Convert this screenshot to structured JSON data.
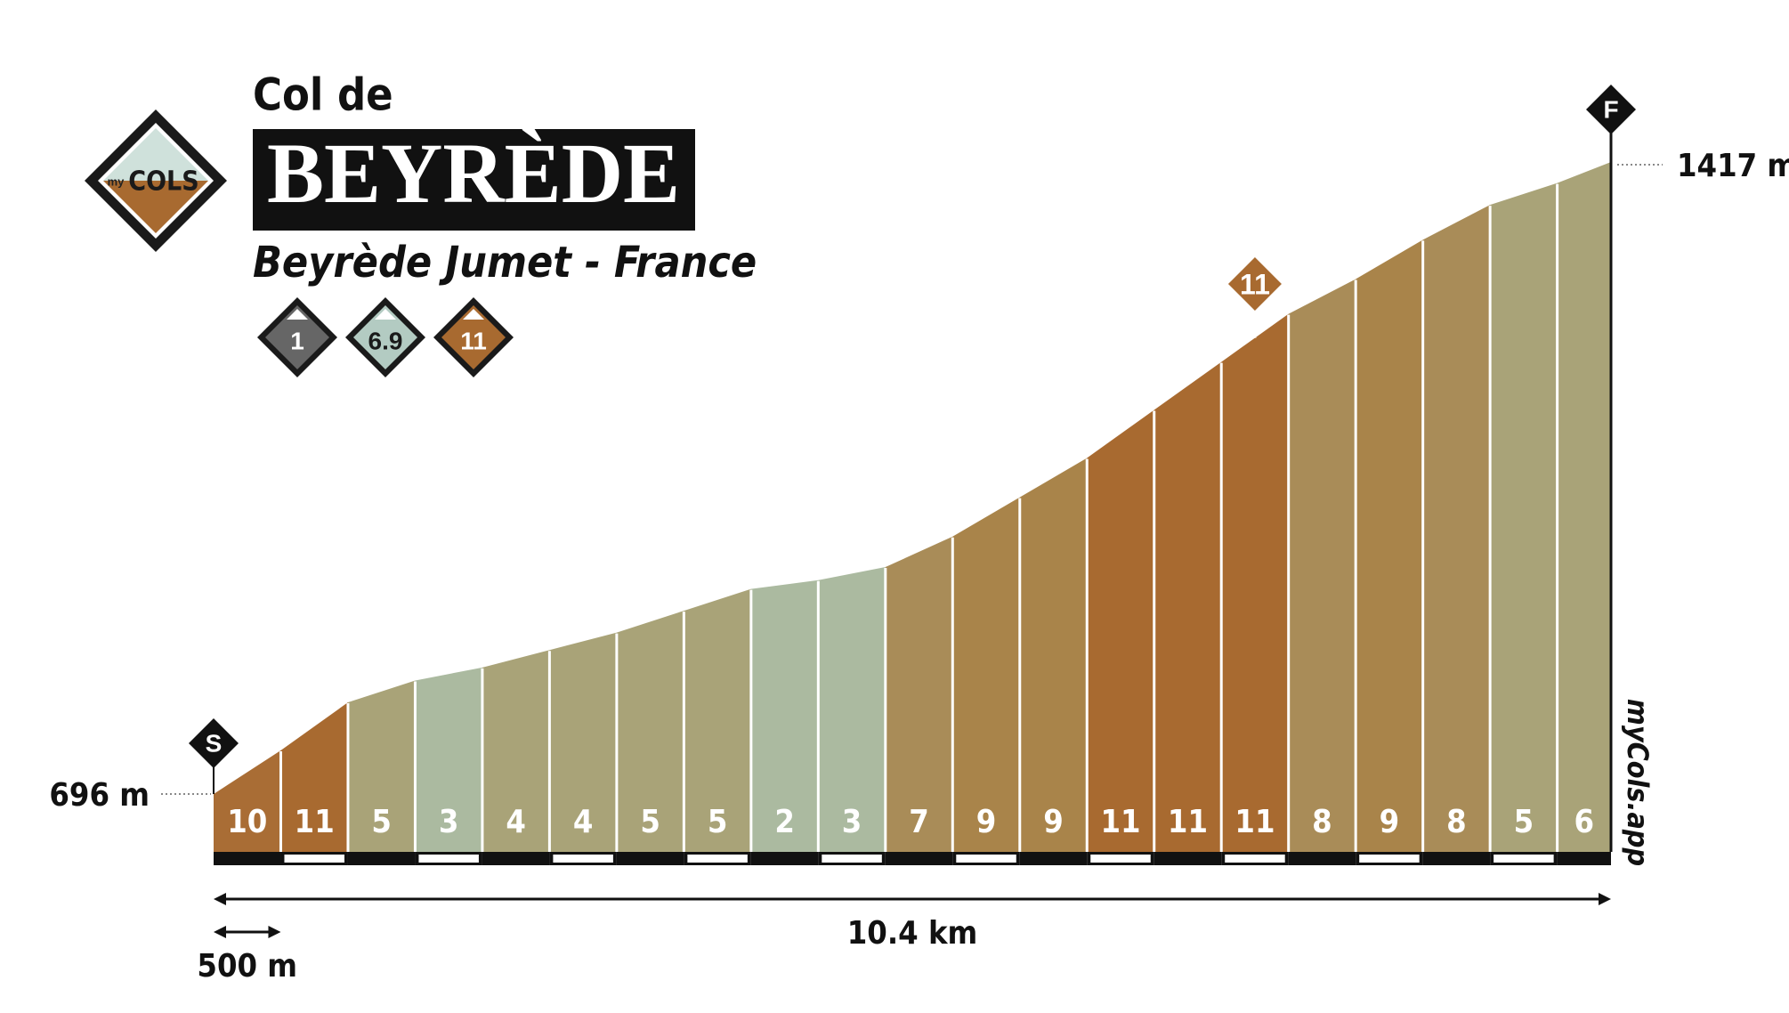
{
  "header": {
    "kicker": "Col de",
    "title": "BEYRÈDE",
    "subtitle": "Beyrède Jumet - France",
    "logo": {
      "my": "my",
      "cols": "COLS"
    },
    "badges": [
      {
        "value": 1,
        "color": "#666666"
      },
      {
        "value": 6.9,
        "color": "#b3cbc2"
      },
      {
        "value": 11,
        "color": "#a86a30"
      }
    ]
  },
  "chart_data": {
    "type": "profile",
    "values": [
      10,
      11,
      5,
      3,
      4,
      4,
      5,
      5,
      2,
      3,
      7,
      9,
      9,
      11,
      11,
      11,
      8,
      9,
      8,
      5,
      6
    ],
    "colors": [
      "#a96d35",
      "#a86a30",
      "#a9a378",
      "#abbaa0",
      "#a9a378",
      "#a9a378",
      "#a9a378",
      "#a9a378",
      "#abbaa0",
      "#abbaa0",
      "#a98c58",
      "#a9844a",
      "#a9844a",
      "#a86a30",
      "#a86a30",
      "#a86a30",
      "#a98c58",
      "#a9844a",
      "#a98c58",
      "#a9a378",
      "#a9a378"
    ],
    "start_elevation": {
      "value": 696,
      "label": "696 m"
    },
    "end_elevation": {
      "value": 1417,
      "label": "1417 m"
    },
    "total_distance": {
      "value": 10.4,
      "label": "10.4 km"
    },
    "segment_length": {
      "value": 500,
      "label": "500 m"
    },
    "start_marker": "S",
    "finish_marker": "F",
    "max_marker": {
      "value": 11,
      "segment": 15,
      "color": "#a86a30"
    },
    "watermark": "myCols.app"
  }
}
